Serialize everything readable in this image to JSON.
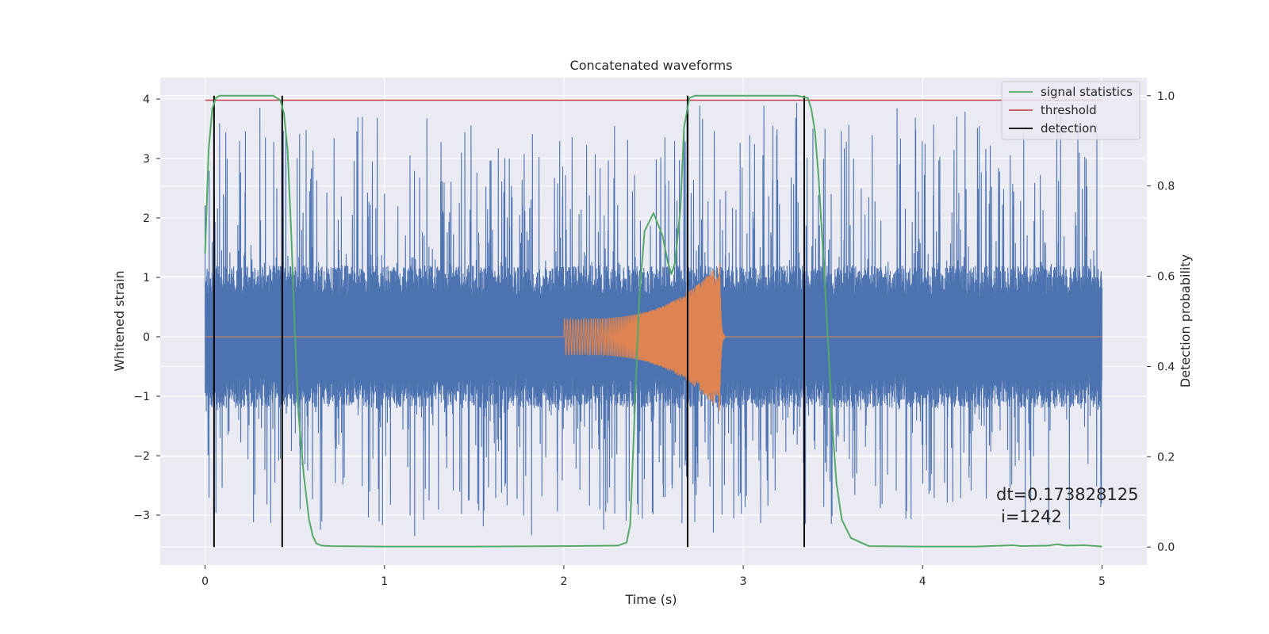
{
  "chart_data": {
    "type": "line",
    "title": "Concatenated waveforms",
    "xlabel": "Time (s)",
    "ylabel": "Whitened strain",
    "ylabel_right": "Detection probability",
    "xlim": [
      -0.25,
      5.25
    ],
    "ylim": [
      -3.84,
      4.36
    ],
    "ylim_right": [
      -0.04,
      1.04
    ],
    "x_ticks": [
      0,
      1,
      2,
      3,
      4,
      5
    ],
    "x_tick_labels": [
      "0",
      "1",
      "2",
      "3",
      "4",
      "5"
    ],
    "y_ticks": [
      -3,
      -2,
      -1,
      0,
      1,
      2,
      3,
      4
    ],
    "y_tick_labels": [
      "−3",
      "−2",
      "−1",
      "0",
      "1",
      "2",
      "3",
      "4"
    ],
    "y_right_ticks": [
      0,
      0.2,
      0.4,
      0.6,
      0.8,
      1.0
    ],
    "y_right_tick_labels": [
      "0.0",
      "0.2",
      "0.4",
      "0.6",
      "0.8",
      "1.0"
    ],
    "grid": true,
    "legend_position": "top-right",
    "noise": {
      "color": "#4c72b0",
      "t_start": 0,
      "t_end": 5,
      "core_amplitude": 1.2,
      "spike_max": 4.0,
      "spike_min": -3.45
    },
    "chirp": {
      "color": "#dd8452",
      "t_start": 2.0,
      "t_end": 2.87,
      "amp_start": 0.3,
      "amp_peak": 1.25
    },
    "series": [
      {
        "name": "signal statistics",
        "color": "#55a868",
        "axis": "right",
        "x": [
          0.0,
          0.02,
          0.04,
          0.06,
          0.08,
          0.1,
          0.2,
          0.3,
          0.38,
          0.42,
          0.44,
          0.46,
          0.48,
          0.5,
          0.52,
          0.55,
          0.58,
          0.6,
          0.62,
          0.65,
          0.7,
          1.0,
          1.5,
          2.0,
          2.3,
          2.35,
          2.37,
          2.39,
          2.42,
          2.45,
          2.5,
          2.55,
          2.58,
          2.6,
          2.62,
          2.65,
          2.67,
          2.7,
          2.73,
          2.78,
          3.0,
          3.3,
          3.36,
          3.38,
          3.4,
          3.42,
          3.45,
          3.48,
          3.5,
          3.52,
          3.55,
          3.6,
          3.7,
          4.0,
          4.3,
          4.45,
          4.5,
          4.55,
          4.7,
          4.75,
          4.8,
          4.9,
          5.0
        ],
        "values": [
          0.65,
          0.88,
          0.97,
          0.995,
          1.0,
          1.0,
          1.0,
          1.0,
          1.0,
          0.99,
          0.96,
          0.88,
          0.7,
          0.48,
          0.3,
          0.16,
          0.06,
          0.025,
          0.008,
          0.003,
          0.002,
          0.001,
          0.001,
          0.002,
          0.003,
          0.01,
          0.05,
          0.25,
          0.55,
          0.7,
          0.74,
          0.69,
          0.63,
          0.605,
          0.63,
          0.75,
          0.93,
          0.995,
          1.0,
          1.0,
          1.0,
          1.0,
          0.995,
          0.97,
          0.92,
          0.82,
          0.62,
          0.4,
          0.25,
          0.14,
          0.06,
          0.02,
          0.002,
          0.001,
          0.001,
          0.003,
          0.004,
          0.002,
          0.003,
          0.006,
          0.003,
          0.004,
          0.001
        ]
      },
      {
        "name": "threshold",
        "color": "#c44e52",
        "axis": "right",
        "x": [
          0,
          5
        ],
        "values": [
          0.99,
          0.99
        ]
      },
      {
        "name": "detection",
        "color": "#000000",
        "axis": "right",
        "x": [
          0.05,
          0.43,
          2.69,
          3.34
        ],
        "values": [
          1.0,
          1.0,
          1.0,
          1.0
        ]
      }
    ],
    "annotation": {
      "line1": "dt=0.173828125",
      "line2": "i=1242"
    }
  }
}
